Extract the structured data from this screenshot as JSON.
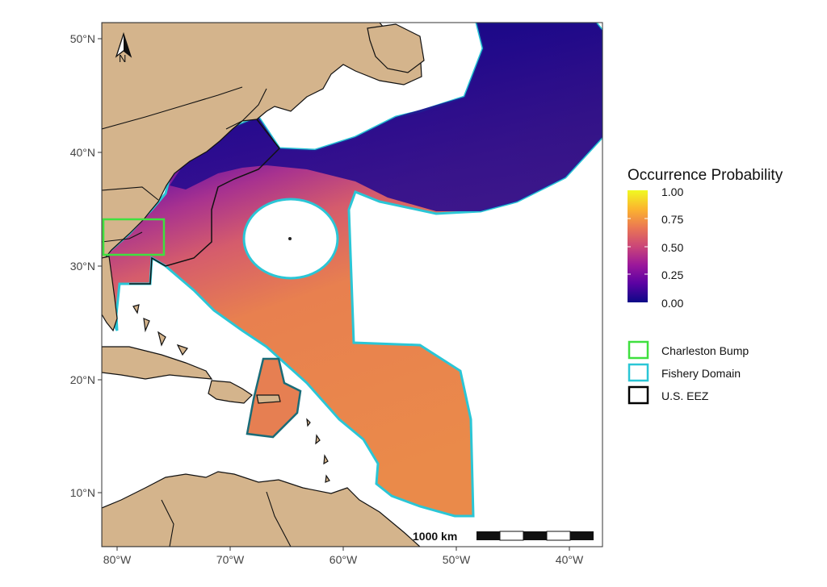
{
  "map": {
    "lat_labels": [
      "50°N",
      "40°N",
      "30°N",
      "20°N",
      "10°N"
    ],
    "lon_labels": [
      "80°W",
      "70°W",
      "60°W",
      "50°W",
      "40°W"
    ],
    "north_arrow_label": "N",
    "scale_bar_label": "1000 km"
  },
  "legend": {
    "title": "Occurrence Probability",
    "ticks": [
      "1.00",
      "0.75",
      "0.50",
      "0.25",
      "0.00"
    ],
    "gradient_colors": [
      "#0d0887",
      "#5b02a3",
      "#9a179b",
      "#cb4678",
      "#eb7852",
      "#fbb32f",
      "#f0f921"
    ],
    "items": [
      {
        "label": "Charleston Bump",
        "color": "#3fe03f"
      },
      {
        "label": "Fishery Domain",
        "color": "#2ac6d6"
      },
      {
        "label": "U.S. EEZ",
        "color": "#000000"
      }
    ]
  },
  "colors": {
    "land": "#d4b48c",
    "ocean": "#ffffff",
    "deep_purple": "#1a0a86",
    "mid_purple": "#8a1aa0",
    "orange": "#e9804f"
  }
}
